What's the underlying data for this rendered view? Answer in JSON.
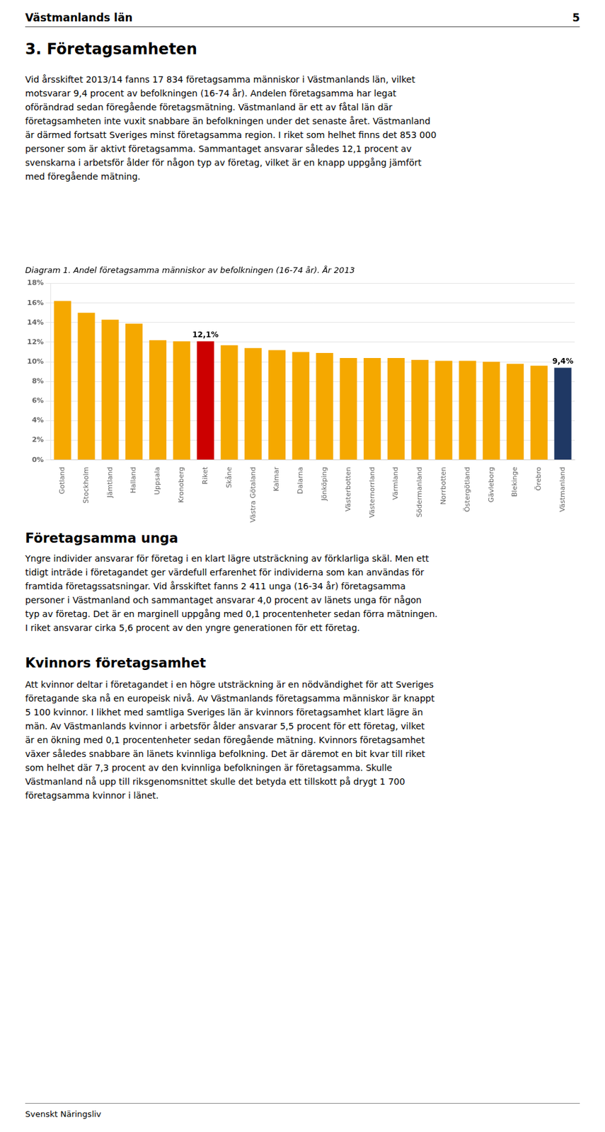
{
  "page_title": "Västmanlands län",
  "page_number": "5",
  "section_title": "3. Företagsamheten",
  "para1_lines": [
    "Vid årsskiftet 2013/14 fanns 17 834 företagsamma människor i Västmanlands län, vilket",
    "motsvarar 9,4 procent av befolkningen (16-74 år). Andelen företagsamma har legat",
    "oförändrad sedan föregående företagsmätning. Västmanland är ett av fåtal län där",
    "företagsamheten inte vuxit snabbare än befolkningen under det senaste året. Västmanland",
    "är därmed fortsatt Sveriges minst företagsamma region. I riket som helhet finns det 853 000",
    "personer som är aktivt företagsamma. Sammantaget ansvarar således 12,1 procent av",
    "svenskarna i arbetsför ålder för någon typ av företag, vilket är en knapp uppgång jämfört",
    "med föregående mätning."
  ],
  "section_title2": "Företagsamma unga",
  "para2_lines": [
    "Yngre individer ansvarar för företag i en klart lägre utsträckning av förklarliga skäl. Men ett",
    "tidigt inträde i företagandet ger värdefull erfarenhet för individerna som kan användas för",
    "framtida företagssatsningar. Vid årsskiftet fanns 2 411 unga (16-34 år) företagsamma",
    "personer i Västmanland och sammantaget ansvarar 4,0 procent av länets unga för någon",
    "typ av företag. Det är en marginell uppgång med 0,1 procentenheter sedan förra mätningen.",
    "I riket ansvarar cirka 5,6 procent av den yngre generationen för ett företag."
  ],
  "section_title3": "Kvinnors företagsamhet",
  "para3_lines": [
    "Att kvinnor deltar i företagandet i en högre utsträckning är en nödvändighet för att Sveriges",
    "företagande ska nå en europeisk nivå. Av Västmanlands företagsamma människor är knappt",
    "5 100 kvinnor. I likhet med samtliga Sveriges län är kvinnors företagsamhet klart lägre än",
    "män. Av Västmanlands kvinnor i arbetsför ålder ansvarar 5,5 procent för ett företag, vilket",
    "är en ökning med 0,1 procentenheter sedan föregående mätning. Kvinnors företagsamhet",
    "växer således snabbare än länets kvinnliga befolkning. Det är däremot en bit kvar till riket",
    "som helhet där 7,3 procent av den kvinnliga befolkningen är företagsamma. Skulle",
    "Västmanland nå upp till riksgenomsnittet skulle det betyda ett tillskott på drygt 1 700",
    "företagsamma kvinnor i länet."
  ],
  "footer": "Svenskt Näringsliv",
  "chart_data": {
    "type": "bar",
    "title": "Diagram 1. Andel företagsamma människor av befolkningen (16-74 år). År 2013",
    "categories": [
      "Gotland",
      "Stockholm",
      "Jämtland",
      "Halland",
      "Uppsala",
      "Kronoberg",
      "Riket",
      "Skåne",
      "Västra Götaland",
      "Kalmar",
      "Dalarna",
      "Jönköping",
      "Västerbotten",
      "Västernorrland",
      "Värmland",
      "Södermanland",
      "Norrbotten",
      "Östergötland",
      "Gävleborg",
      "Blekinge",
      "Örebro",
      "Västmanland"
    ],
    "values": [
      16.2,
      15.0,
      14.3,
      13.9,
      12.2,
      12.1,
      12.1,
      11.7,
      11.4,
      11.2,
      11.0,
      10.9,
      10.4,
      10.4,
      10.4,
      10.2,
      10.1,
      10.1,
      10.0,
      9.8,
      9.6,
      9.4
    ],
    "colors": [
      "#F5A800",
      "#F5A800",
      "#F5A800",
      "#F5A800",
      "#F5A800",
      "#F5A800",
      "#CC0000",
      "#F5A800",
      "#F5A800",
      "#F5A800",
      "#F5A800",
      "#F5A800",
      "#F5A800",
      "#F5A800",
      "#F5A800",
      "#F5A800",
      "#F5A800",
      "#F5A800",
      "#F5A800",
      "#F5A800",
      "#F5A800",
      "#1F3864"
    ],
    "ylim": [
      0,
      18
    ],
    "yticks": [
      {
        "value": 0,
        "label": "0%"
      },
      {
        "value": 2,
        "label": "2%"
      },
      {
        "value": 4,
        "label": "4%"
      },
      {
        "value": 6,
        "label": "6%"
      },
      {
        "value": 8,
        "label": "8%"
      },
      {
        "value": 10,
        "label": "10%"
      },
      {
        "value": 12,
        "label": "12%"
      },
      {
        "value": 14,
        "label": "14%"
      },
      {
        "value": 16,
        "label": "16%"
      },
      {
        "value": 18,
        "label": "18%"
      }
    ],
    "grid": true,
    "annotations": [
      {
        "category": "Riket",
        "text": "12,1%"
      },
      {
        "category": "Västmanland",
        "text": "9,4%"
      }
    ]
  }
}
